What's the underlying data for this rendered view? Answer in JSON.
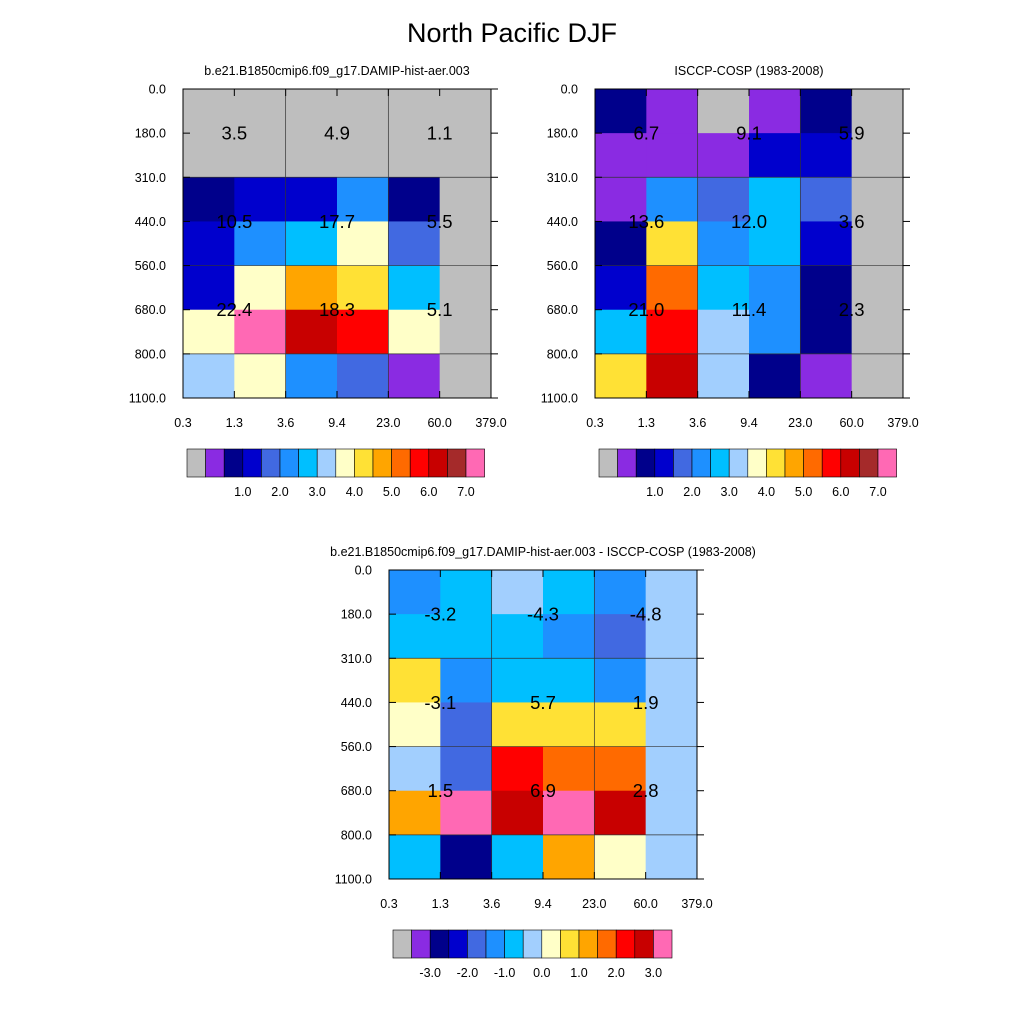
{
  "title": "North Pacific DJF",
  "chart_data": [
    {
      "type": "heatmap",
      "id": "model",
      "title": "b.e21.B1850cmip6.f09_g17.DAMIP-hist-aer.003",
      "x_ticks": [
        "0.3",
        "1.3",
        "3.6",
        "9.4",
        "23.0",
        "60.0",
        "379.0"
      ],
      "y_ticks": [
        "0.0",
        "180.0",
        "310.0",
        "440.0",
        "560.0",
        "680.0",
        "800.0",
        "1100.0"
      ],
      "cells": [
        [
          "#BEBEBE",
          "#BEBEBE",
          "#BEBEBE",
          "#BEBEBE",
          "#BEBEBE",
          "#BEBEBE"
        ],
        [
          "#BEBEBE",
          "#BEBEBE",
          "#BEBEBE",
          "#BEBEBE",
          "#BEBEBE",
          "#BEBEBE"
        ],
        [
          "#00008B",
          "#0000CD",
          "#0000CD",
          "#1E90FF",
          "#00008B",
          "#BEBEBE"
        ],
        [
          "#0000CD",
          "#1E90FF",
          "#00BFFF",
          "#FFFFC8",
          "#4169E1",
          "#BEBEBE"
        ],
        [
          "#0000CD",
          "#FFFFC8",
          "#FFA500",
          "#FFE135",
          "#00BFFF",
          "#BEBEBE"
        ],
        [
          "#FFFFC8",
          "#FF69B4",
          "#C80000",
          "#FF0000",
          "#FFFFC8",
          "#BEBEBE"
        ],
        [
          "#A2CFFE",
          "#FFFFC8",
          "#1E90FF",
          "#4169E1",
          "#8A2BE2",
          "#BEBEBE"
        ]
      ],
      "labels": [
        [
          "3.5",
          "4.9",
          "1.1"
        ],
        [
          "10.5",
          "17.7",
          "5.5"
        ],
        [
          "22.4",
          "18.3",
          "5.1"
        ]
      ],
      "colorbar": {
        "colors": [
          "#BEBEBE",
          "#8A2BE2",
          "#00008B",
          "#0000CD",
          "#4169E1",
          "#1E90FF",
          "#00BFFF",
          "#A2CFFE",
          "#FFFFC8",
          "#FFE135",
          "#FFA500",
          "#FF6A00",
          "#FF0000",
          "#C80000",
          "#A52A2A",
          "#FF69B4"
        ],
        "labels": [
          "1.0",
          "2.0",
          "3.0",
          "4.0",
          "5.0",
          "6.0",
          "7.0"
        ]
      }
    },
    {
      "type": "heatmap",
      "id": "obs",
      "title": "ISCCP-COSP (1983-2008)",
      "x_ticks": [
        "0.3",
        "1.3",
        "3.6",
        "9.4",
        "23.0",
        "60.0",
        "379.0"
      ],
      "y_ticks": [
        "0.0",
        "180.0",
        "310.0",
        "440.0",
        "560.0",
        "680.0",
        "800.0",
        "1100.0"
      ],
      "cells": [
        [
          "#00008B",
          "#8A2BE2",
          "#BEBEBE",
          "#8A2BE2",
          "#00008B",
          "#BEBEBE"
        ],
        [
          "#8A2BE2",
          "#8A2BE2",
          "#8A2BE2",
          "#0000CD",
          "#0000CD",
          "#BEBEBE"
        ],
        [
          "#8A2BE2",
          "#1E90FF",
          "#4169E1",
          "#00BFFF",
          "#4169E1",
          "#BEBEBE"
        ],
        [
          "#00008B",
          "#FFE135",
          "#1E90FF",
          "#00BFFF",
          "#0000CD",
          "#BEBEBE"
        ],
        [
          "#0000CD",
          "#FF6A00",
          "#00BFFF",
          "#1E90FF",
          "#00008B",
          "#BEBEBE"
        ],
        [
          "#00BFFF",
          "#FF0000",
          "#A2CFFE",
          "#1E90FF",
          "#00008B",
          "#BEBEBE"
        ],
        [
          "#FFE135",
          "#C80000",
          "#A2CFFE",
          "#00008B",
          "#8A2BE2",
          "#BEBEBE"
        ]
      ],
      "labels": [
        [
          "6.7",
          "9.1",
          "5.9"
        ],
        [
          "13.6",
          "12.0",
          "3.6"
        ],
        [
          "21.0",
          "11.4",
          "2.3"
        ]
      ],
      "colorbar": {
        "colors": [
          "#BEBEBE",
          "#8A2BE2",
          "#00008B",
          "#0000CD",
          "#4169E1",
          "#1E90FF",
          "#00BFFF",
          "#A2CFFE",
          "#FFFFC8",
          "#FFE135",
          "#FFA500",
          "#FF6A00",
          "#FF0000",
          "#C80000",
          "#A52A2A",
          "#FF69B4"
        ],
        "labels": [
          "1.0",
          "2.0",
          "3.0",
          "4.0",
          "5.0",
          "6.0",
          "7.0"
        ]
      }
    },
    {
      "type": "heatmap",
      "id": "diff",
      "title": "b.e21.B1850cmip6.f09_g17.DAMIP-hist-aer.003 - ISCCP-COSP (1983-2008)",
      "x_ticks": [
        "0.3",
        "1.3",
        "3.6",
        "9.4",
        "23.0",
        "60.0",
        "379.0"
      ],
      "y_ticks": [
        "0.0",
        "180.0",
        "310.0",
        "440.0",
        "560.0",
        "680.0",
        "800.0",
        "1100.0"
      ],
      "cells": [
        [
          "#1E90FF",
          "#00BFFF",
          "#A2CFFE",
          "#00BFFF",
          "#1E90FF",
          "#A2CFFE"
        ],
        [
          "#00BFFF",
          "#00BFFF",
          "#00BFFF",
          "#1E90FF",
          "#4169E1",
          "#A2CFFE"
        ],
        [
          "#FFE135",
          "#1E90FF",
          "#00BFFF",
          "#00BFFF",
          "#1E90FF",
          "#A2CFFE"
        ],
        [
          "#FFFFC8",
          "#4169E1",
          "#FFE135",
          "#FFE135",
          "#FFE135",
          "#A2CFFE"
        ],
        [
          "#A2CFFE",
          "#4169E1",
          "#FF0000",
          "#FF6A00",
          "#FF6A00",
          "#A2CFFE"
        ],
        [
          "#FFA500",
          "#FF69B4",
          "#C80000",
          "#FF69B4",
          "#C80000",
          "#A2CFFE"
        ],
        [
          "#00BFFF",
          "#00008B",
          "#00BFFF",
          "#FFA500",
          "#FFFFC8",
          "#A2CFFE"
        ]
      ],
      "labels": [
        [
          "-3.2",
          "-4.3",
          "-4.8"
        ],
        [
          "-3.1",
          "5.7",
          "1.9"
        ],
        [
          "1.5",
          "6.9",
          "2.8"
        ]
      ],
      "colorbar": {
        "colors": [
          "#BEBEBE",
          "#8A2BE2",
          "#00008B",
          "#0000CD",
          "#4169E1",
          "#1E90FF",
          "#00BFFF",
          "#A2CFFE",
          "#FFFFC8",
          "#FFE135",
          "#FFA500",
          "#FF6A00",
          "#FF0000",
          "#C80000",
          "#FF69B4"
        ],
        "labels": [
          "-3.0",
          "-2.0",
          "-1.0",
          "0.0",
          "1.0",
          "2.0",
          "3.0"
        ]
      }
    }
  ]
}
